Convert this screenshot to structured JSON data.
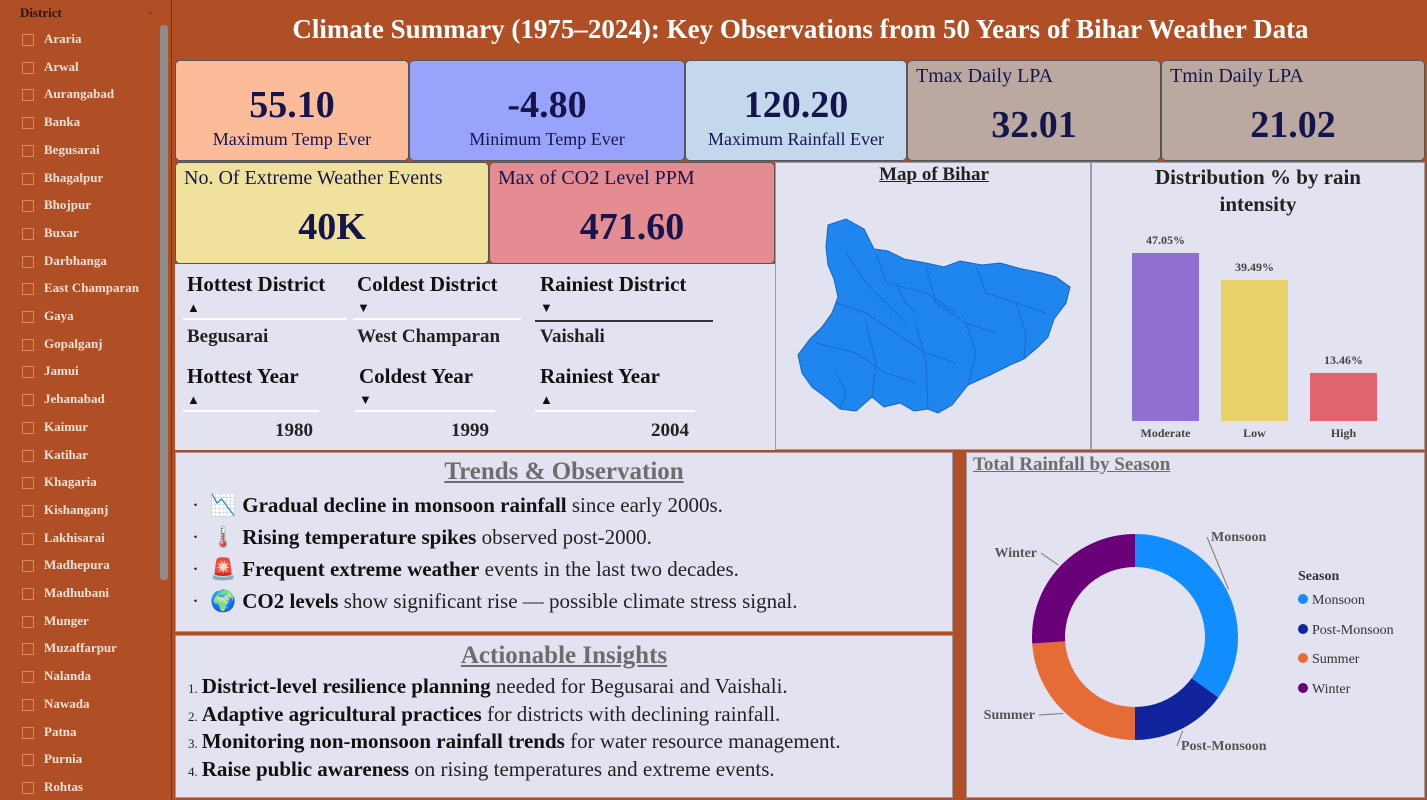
{
  "sidebar": {
    "title": "District",
    "items": [
      "Araria",
      "Arwal",
      "Aurangabad",
      "Banka",
      "Begusarai",
      "Bhagalpur",
      "Bhojpur",
      "Buxar",
      "Darbhanga",
      "East Champaran",
      "Gaya",
      "Gopalganj",
      "Jamui",
      "Jehanabad",
      "Kaimur",
      "Katihar",
      "Khagaria",
      "Kishanganj",
      "Lakhisarai",
      "Madhepura",
      "Madhubani",
      "Munger",
      "Muzaffarpur",
      "Nalanda",
      "Nawada",
      "Patna",
      "Purnia",
      "Rohtas"
    ]
  },
  "header": {
    "title": "Climate Summary (1975–2024): Key Observations from 50 Years of Bihar Weather Data"
  },
  "kpis": {
    "max_temp": {
      "value": "55.10",
      "label": "Maximum Temp Ever",
      "color": "#fdbc99"
    },
    "min_temp": {
      "value": "-4.80",
      "label": "Minimum Temp Ever",
      "color": "#98a3fb"
    },
    "max_rain": {
      "value": "120.20",
      "label": "Maximum Rainfall Ever",
      "color": "#c3d8ec"
    },
    "tmax_lpa": {
      "label": "Tmax Daily LPA",
      "value": "32.01",
      "color": "#bba9a1"
    },
    "tmin_lpa": {
      "label": "Tmin Daily LPA",
      "value": "21.02",
      "color": "#bba9a1"
    },
    "extreme": {
      "label": "No. Of Extreme Weather Events",
      "value": "40K",
      "color": "#f0e29d"
    },
    "co2": {
      "label": "Max of CO2 Level PPM",
      "value": "471.60",
      "color": "#e48c92"
    }
  },
  "districts": {
    "hottest": {
      "label": "Hottest District",
      "value": "Begusarai",
      "sort": "▲"
    },
    "coldest": {
      "label": "Coldest District",
      "value": "West Champaran",
      "sort": "▼"
    },
    "rainiest": {
      "label": "Rainiest District",
      "value": "Vaishali",
      "sort": "▼"
    }
  },
  "years": {
    "hottest": {
      "label": "Hottest Year",
      "value": "1980",
      "sort": "▲"
    },
    "coldest": {
      "label": "Coldest Year",
      "value": "1999",
      "sort": "▼"
    },
    "rainiest": {
      "label": "Rainiest Year",
      "value": "2004",
      "sort": "▲"
    }
  },
  "map": {
    "title": "Map of Bihar",
    "fill_color": "#1f86f0"
  },
  "chart_data": [
    {
      "type": "bar",
      "title": "Distribution % by rain intensity",
      "categories": [
        "Moderate",
        "Low",
        "High"
      ],
      "values": [
        47.05,
        39.49,
        13.46
      ],
      "data_labels": [
        "47.05%",
        "39.49%",
        "13.46%"
      ],
      "colors": [
        "#8f6fd0",
        "#e9d26a",
        "#e0646d"
      ]
    },
    {
      "type": "pie",
      "title": "Total Rainfall by Season",
      "legend_title": "Season",
      "legend_position": "right",
      "categories": [
        "Monsoon",
        "Post-Monsoon",
        "Summer",
        "Winter"
      ],
      "values": [
        35,
        15,
        24,
        26
      ],
      "colors": [
        "#118dff",
        "#12239e",
        "#e66c37",
        "#6b007b"
      ]
    }
  ],
  "trends": {
    "title": "Trends & Observation",
    "items": [
      {
        "icon": "📉",
        "bold": "Gradual decline in monsoon rainfall",
        "rest": " since early 2000s."
      },
      {
        "icon": "🌡️",
        "bold": "Rising temperature spikes",
        "rest": " observed post-2000."
      },
      {
        "icon": "🚨",
        "bold": "Frequent extreme weather",
        "rest": " events in the last two decades."
      },
      {
        "icon": "🌍",
        "bold": "CO2 levels",
        "rest": " show significant rise — possible climate stress signal."
      }
    ]
  },
  "insights": {
    "title": "Actionable Insights",
    "items": [
      {
        "num": "1.",
        "bold": "District-level resilience planning",
        "rest": " needed for Begusarai and Vaishali."
      },
      {
        "num": "2.",
        "bold": "Adaptive agricultural practices",
        "rest": " for districts with declining rainfall."
      },
      {
        "num": "3.",
        "bold": "Monitoring non-monsoon rainfall trends",
        "rest": " for water resource management."
      },
      {
        "num": "4.",
        "bold": "Raise public awareness",
        "rest": " on rising temperatures and extreme events."
      }
    ]
  }
}
